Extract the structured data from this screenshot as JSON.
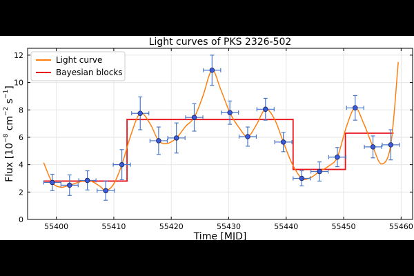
{
  "chart_data": {
    "type": "scatter",
    "title": "Light curves of PKS 2326-502",
    "xlabel": "Time [MJD]",
    "ylabel_main": "Flux [10",
    "ylabel_exp1": "−8",
    "ylabel_mid": " cm",
    "ylabel_exp2": "−2",
    "ylabel_mid2": " s",
    "ylabel_exp3": "−1",
    "ylabel_end": "]",
    "xlim": [
      55395,
      55462
    ],
    "ylim": [
      0,
      12.5
    ],
    "x_ticks": [
      55400,
      55410,
      55420,
      55430,
      55440,
      55450,
      55460
    ],
    "y_ticks": [
      0,
      2,
      4,
      6,
      8,
      10,
      12
    ],
    "grid": true,
    "legend": {
      "placement": "top-left",
      "entries": [
        {
          "label": "Light curve",
          "color": "#ff7f0e"
        },
        {
          "label": "Bayesian blocks",
          "color": "#e8141c"
        }
      ]
    },
    "points": {
      "x": [
        55399.3,
        55402.3,
        55405.4,
        55408.6,
        55411.4,
        55414.6,
        55417.8,
        55420.9,
        55424.0,
        55427.1,
        55430.2,
        55433.3,
        55436.4,
        55439.5,
        55442.7,
        55445.8,
        55448.9,
        55452.0,
        55455.1,
        55458.2
      ],
      "y": [
        2.7,
        2.5,
        2.85,
        2.1,
        4.0,
        7.75,
        5.75,
        5.95,
        7.45,
        10.9,
        7.8,
        6.05,
        8.05,
        5.65,
        3.0,
        3.5,
        4.55,
        8.15,
        5.3,
        5.45
      ],
      "xerr": [
        1.5,
        1.5,
        1.5,
        1.5,
        1.5,
        1.5,
        1.5,
        1.5,
        1.5,
        1.5,
        1.5,
        1.5,
        1.5,
        1.5,
        1.5,
        1.5,
        1.5,
        1.5,
        1.5,
        1.5
      ],
      "yerr": [
        0.6,
        0.75,
        0.7,
        0.7,
        1.1,
        1.2,
        1.0,
        1.1,
        1.0,
        1.1,
        0.85,
        0.7,
        0.8,
        0.7,
        0.55,
        0.7,
        0.7,
        0.9,
        0.8,
        1.1
      ],
      "color": "#3b5bdb"
    },
    "light_curve": {
      "x": [
        55397.8,
        55399.3,
        55400.8,
        55402.3,
        55405.4,
        55407.5,
        55408.6,
        55410.0,
        55411.4,
        55413.0,
        55414.6,
        55416.3,
        55417.8,
        55419.3,
        55420.9,
        55422.5,
        55424.0,
        55425.5,
        55427.1,
        55428.6,
        55430.2,
        55431.8,
        55433.3,
        55434.8,
        55436.4,
        55438.0,
        55439.5,
        55441.0,
        55442.7,
        55444.2,
        55445.8,
        55447.4,
        55448.9,
        55450.5,
        55452.0,
        55453.5,
        55455.1,
        55456.6,
        55458.2,
        55459.5
      ],
      "y": [
        4.15,
        2.7,
        2.35,
        2.5,
        2.85,
        2.45,
        2.1,
        2.6,
        4.0,
        6.2,
        7.75,
        7.0,
        5.75,
        5.55,
        5.95,
        6.8,
        7.45,
        9.0,
        10.9,
        9.5,
        7.8,
        6.7,
        6.05,
        6.9,
        8.05,
        7.3,
        5.65,
        4.1,
        3.0,
        3.05,
        3.5,
        3.9,
        4.55,
        6.8,
        8.15,
        7.0,
        5.3,
        4.05,
        5.45,
        11.5
      ],
      "color": "#ff7f0e"
    },
    "bayesian_blocks": {
      "edges": [
        55397.8,
        55412.3,
        55413.6,
        55441.2,
        55450.3,
        55458.7
      ],
      "values": [
        2.8,
        7.3,
        7.3,
        3.65,
        6.3
      ],
      "color": "#e8141c"
    }
  }
}
